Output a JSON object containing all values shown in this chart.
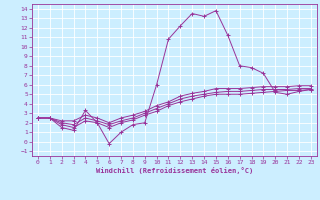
{
  "bg_color": "#cceeff",
  "grid_color": "#ffffff",
  "line_color": "#993399",
  "marker": "+",
  "xlabel": "Windchill (Refroidissement éolien,°C)",
  "xlim": [
    -0.5,
    23.5
  ],
  "ylim": [
    -1.5,
    14.5
  ],
  "xticks": [
    0,
    1,
    2,
    3,
    4,
    5,
    6,
    7,
    8,
    9,
    10,
    11,
    12,
    13,
    14,
    15,
    16,
    17,
    18,
    19,
    20,
    21,
    22,
    23
  ],
  "yticks": [
    -1,
    0,
    1,
    2,
    3,
    4,
    5,
    6,
    7,
    8,
    9,
    10,
    11,
    12,
    13,
    14
  ],
  "series": [
    [
      2.5,
      2.5,
      1.5,
      1.2,
      3.3,
      2.0,
      -0.2,
      1.0,
      1.8,
      2.0,
      6.0,
      10.8,
      12.2,
      13.5,
      13.2,
      13.8,
      11.2,
      8.0,
      7.8,
      7.2,
      5.2,
      5.0,
      5.3,
      5.5
    ],
    [
      2.5,
      2.5,
      1.8,
      1.5,
      2.2,
      2.0,
      1.5,
      2.0,
      2.3,
      2.8,
      3.2,
      3.8,
      4.2,
      4.5,
      4.8,
      5.0,
      5.0,
      5.0,
      5.1,
      5.2,
      5.3,
      5.4,
      5.4,
      5.5
    ],
    [
      2.5,
      2.5,
      2.0,
      1.8,
      2.5,
      2.2,
      1.8,
      2.2,
      2.5,
      3.0,
      3.5,
      4.0,
      4.5,
      4.8,
      5.0,
      5.2,
      5.3,
      5.3,
      5.4,
      5.5,
      5.5,
      5.5,
      5.6,
      5.6
    ],
    [
      2.5,
      2.5,
      2.2,
      2.2,
      2.8,
      2.5,
      2.0,
      2.5,
      2.8,
      3.2,
      3.8,
      4.2,
      4.8,
      5.1,
      5.3,
      5.6,
      5.6,
      5.6,
      5.7,
      5.8,
      5.8,
      5.8,
      5.9,
      5.9
    ]
  ]
}
